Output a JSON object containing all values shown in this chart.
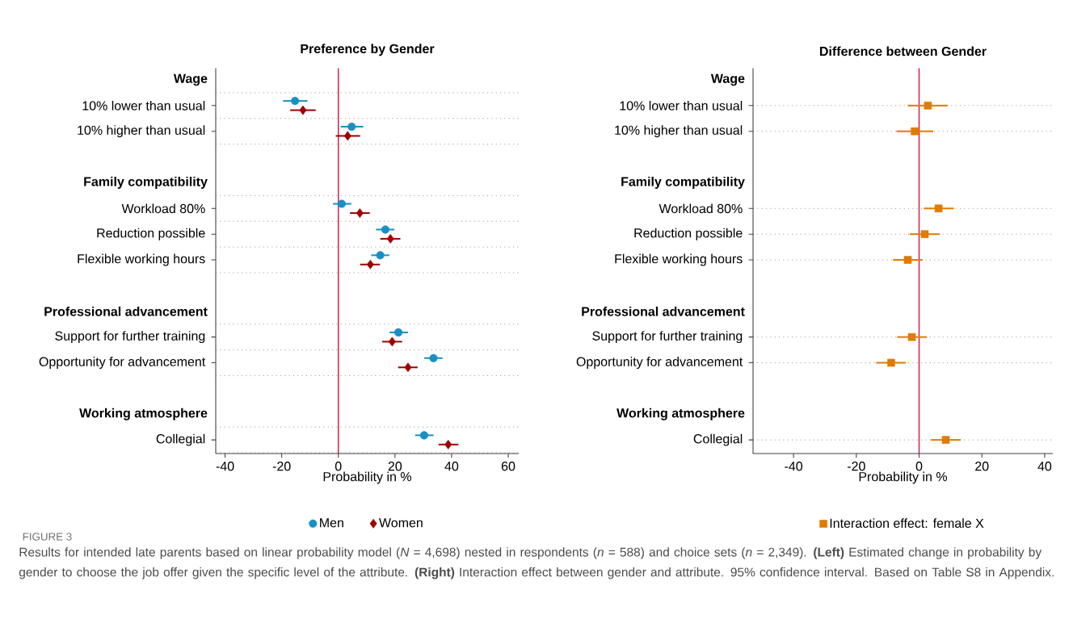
{
  "chart_data": [
    {
      "type": "scatter",
      "orientation": "horizontal",
      "title": "Preference by Gender",
      "xlabel": "Probability in %",
      "categories": [
        "Wage",
        "10% lower than usual",
        "10% higher than usual",
        null,
        "Family compatibility",
        "Workload 80%",
        "Reduction possible",
        "Flexible working hours",
        null,
        "Professional advancement",
        "Support for further training",
        "Opportunity for advancement",
        null,
        "Working atmosphere",
        "Collegial"
      ],
      "series": [
        {
          "name": "Men",
          "color": "#1a8fc4",
          "marker": "circle",
          "values": [
            null,
            -15.3,
            4.7,
            null,
            null,
            1.2,
            16.6,
            14.8,
            null,
            null,
            21.2,
            33.6,
            null,
            null,
            30.3
          ],
          "errors": [
            null,
            [
              -19.5,
              -10.9
            ],
            [
              0.8,
              8.8
            ],
            null,
            null,
            [
              -1.9,
              4.6
            ],
            [
              13.3,
              19.8
            ],
            [
              11.6,
              18.0
            ],
            null,
            null,
            [
              18.1,
              24.6
            ],
            [
              30.3,
              36.8
            ],
            null,
            null,
            [
              27.1,
              33.6
            ]
          ]
        },
        {
          "name": "Women",
          "color": "#9e0000",
          "marker": "diamond",
          "values": [
            null,
            -12.5,
            3.3,
            null,
            null,
            7.6,
            18.4,
            11.3,
            null,
            null,
            19.0,
            24.6,
            null,
            null,
            38.8
          ],
          "errors": [
            null,
            [
              -17.0,
              -8.0
            ],
            [
              -0.9,
              7.7
            ],
            null,
            null,
            [
              4.1,
              11.1
            ],
            [
              14.8,
              21.9
            ],
            [
              7.7,
              14.7
            ],
            null,
            null,
            [
              15.5,
              22.5
            ],
            [
              21.1,
              28.0
            ],
            null,
            null,
            [
              35.4,
              42.4
            ]
          ]
        }
      ],
      "xlim": [
        -43.3,
        63.7
      ],
      "xticks": [
        -40,
        -20,
        0,
        20,
        40,
        60
      ],
      "grid": "y",
      "legend": "bottom",
      "ref_lines": [
        {
          "axis": "x",
          "value": 0,
          "color": "#d2204a"
        }
      ],
      "annotations": [
        "FIGURE 3",
        "Results for intended late parents based on linear probability model (*N* = 4,698) nested in respondents (*n* = 588) and choice sets (*n* = 2,349). **(Left)** Estimated change in probability by gender to choose the job offer given the specific level of the attribute. **(Right)** Interaction effect between gender and attribute. 95% confidence interval. Based on Table S8 in Appendix."
      ]
    },
    {
      "type": "scatter",
      "orientation": "horizontal",
      "title": "Difference between Gender",
      "xlabel": "Probability in %",
      "categories": [
        "Wage",
        "10% lower than usual",
        "10% higher than usual",
        null,
        "Family compatibility",
        "Workload 80%",
        "Reduction possible",
        "Flexible working hours",
        null,
        "Professional advancement",
        "Support for further training",
        "Opportunity for advancement",
        null,
        "Working atmosphere",
        "Collegial"
      ],
      "series": [
        {
          "name": "Interaction effect: female X",
          "color": "#e07b00",
          "marker": "square",
          "values": [
            null,
            2.8,
            -1.4,
            null,
            null,
            6.2,
            1.8,
            -3.6,
            null,
            null,
            -2.3,
            -8.9,
            null,
            null,
            8.5
          ],
          "errors": [
            null,
            [
              -3.6,
              9.1
            ],
            [
              -7.2,
              4.5
            ],
            null,
            null,
            [
              1.5,
              11.1
            ],
            [
              -3.0,
              6.6
            ],
            [
              -8.3,
              1.1
            ],
            null,
            null,
            [
              -7.0,
              2.5
            ],
            [
              -13.7,
              -4.2
            ],
            null,
            null,
            [
              3.8,
              13.3
            ]
          ]
        }
      ],
      "xlim": [
        -52.9,
        42.6
      ],
      "xticks": [
        -40,
        -20,
        0,
        20,
        40
      ],
      "grid": "y",
      "legend": "bottom",
      "ref_lines": [
        {
          "axis": "x",
          "value": 0,
          "color": "#d2204a"
        }
      ]
    }
  ]
}
